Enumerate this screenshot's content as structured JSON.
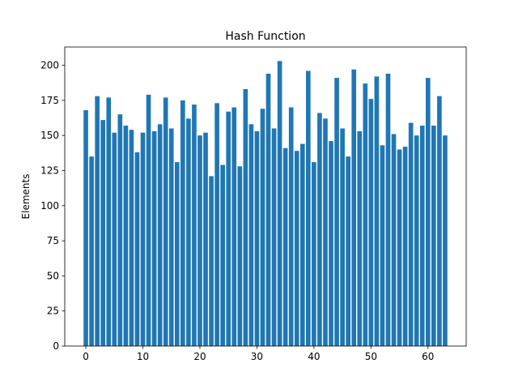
{
  "colors": {
    "bar": "#1f77b4",
    "axis": "#000000",
    "background": "#ffffff"
  },
  "chart_data": {
    "type": "bar",
    "title": "Hash Function",
    "xlabel": "",
    "ylabel": "Elements",
    "xlim": [
      -3.7,
      66.7
    ],
    "ylim": [
      0,
      213
    ],
    "xticks": [
      0,
      10,
      20,
      30,
      40,
      50,
      60
    ],
    "yticks": [
      0,
      25,
      50,
      75,
      100,
      125,
      150,
      175,
      200
    ],
    "grid": false,
    "legend": "none",
    "categories": [
      0,
      1,
      2,
      3,
      4,
      5,
      6,
      7,
      8,
      9,
      10,
      11,
      12,
      13,
      14,
      15,
      16,
      17,
      18,
      19,
      20,
      21,
      22,
      23,
      24,
      25,
      26,
      27,
      28,
      29,
      30,
      31,
      32,
      33,
      34,
      35,
      36,
      37,
      38,
      39,
      40,
      41,
      42,
      43,
      44,
      45,
      46,
      47,
      48,
      49,
      50,
      51,
      52,
      53,
      54,
      55,
      56,
      57,
      58,
      59,
      60,
      61,
      62,
      63
    ],
    "values": [
      168,
      135,
      178,
      161,
      177,
      152,
      165,
      157,
      154,
      138,
      152,
      179,
      153,
      158,
      177,
      155,
      131,
      175,
      162,
      172,
      150,
      152,
      121,
      173,
      129,
      167,
      170,
      128,
      183,
      158,
      153,
      169,
      194,
      155,
      203,
      141,
      170,
      139,
      144,
      196,
      131,
      166,
      162,
      146,
      191,
      155,
      135,
      197,
      153,
      187,
      176,
      192,
      143,
      194,
      151,
      140,
      142,
      159,
      150,
      157,
      191,
      157,
      178,
      150
    ]
  }
}
